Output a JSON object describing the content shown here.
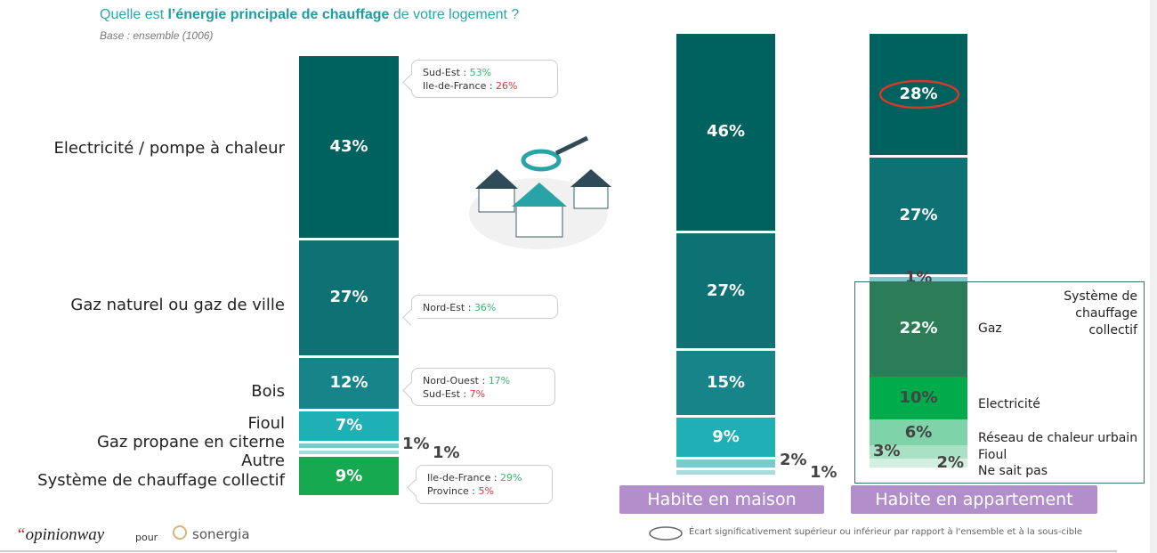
{
  "header": {
    "title_pre": "Quelle est ",
    "title_bold": "l’énergie principale de chauffage",
    "title_post": " de votre logement ?",
    "base": "Base : ensemble (1006)"
  },
  "chart_data": [
    {
      "type": "stacked-bar",
      "name": "Ensemble",
      "categories": [
        "Electricité / pompe à chaleur",
        "Gaz naturel ou gaz de ville",
        "Bois",
        "Fioul",
        "Gaz propane en citerne",
        "Autre",
        "Système de chauffage collectif"
      ],
      "values": [
        43,
        27,
        12,
        7,
        1,
        1,
        9
      ],
      "labels": [
        "43%",
        "27%",
        "12%",
        "7%",
        "1%",
        "1%",
        "9%"
      ],
      "colors": [
        "#00625e",
        "#0e7174",
        "#168489",
        "#1fb0b6",
        "#7fc9cd",
        "#a9dcdf",
        "#17a94f"
      ]
    },
    {
      "type": "stacked-bar",
      "label": "Habite en maison",
      "values": [
        46,
        27,
        15,
        9,
        2,
        1
      ],
      "labels": [
        "46%",
        "27%",
        "15%",
        "9%",
        "2%",
        "1%"
      ],
      "colors": [
        "#00625e",
        "#0e7174",
        "#168489",
        "#1fb0b6",
        "#7fc9cd",
        "#a9dcdf"
      ]
    },
    {
      "type": "stacked-bar",
      "label": "Habite en appartement",
      "values": [
        28,
        27,
        1,
        22,
        10,
        6,
        3,
        2
      ],
      "labels": [
        "28%",
        "27%",
        "1%",
        "22%",
        "10%",
        "6%",
        "3%",
        "2%"
      ],
      "colors": [
        "#00625e",
        "#0e7174",
        "#7fc9cd",
        "#2a7d56",
        "#00ab4c",
        "#7fd3a9",
        "#a9e1c5",
        "#d3efe2"
      ],
      "highlighted": "28%",
      "collective_breakdown": {
        "title": "Système de chauffage collectif",
        "items": [
          "Gaz",
          "Electricité",
          "Réseau de chaleur urbain",
          "Fioul",
          "Ne sait pas"
        ]
      }
    }
  ],
  "callouts": [
    [
      {
        "region": "Sud-Est : ",
        "value": "53%",
        "dir": "up"
      },
      {
        "region": "Ile-de-France : ",
        "value": "26%",
        "dir": "down"
      }
    ],
    [
      {
        "region": "Nord-Est : ",
        "value": "36%",
        "dir": "up"
      }
    ],
    [
      {
        "region": "Nord-Ouest : ",
        "value": "17%",
        "dir": "up"
      },
      {
        "region": "Sud-Est : ",
        "value": "7%",
        "dir": "down"
      }
    ],
    [
      {
        "region": "Ile-de-France : ",
        "value": "29%",
        "dir": "up"
      },
      {
        "region": "Province : ",
        "value": "5%",
        "dir": "down"
      }
    ]
  ],
  "footer": {
    "brand": "opinionway",
    "pour": "pour",
    "partner": "sonergia",
    "legend": "Écart significativement supérieur ou inférieur par rapport à l'ensemble et à la sous-cible"
  }
}
